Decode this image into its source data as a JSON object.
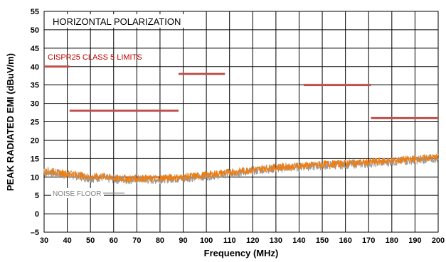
{
  "chart_data": {
    "type": "line",
    "title": "",
    "xlabel": "Frequency (MHz)",
    "ylabel": "PEAK RADIATED EMI (dBuV/m)",
    "xlim": [
      30,
      200
    ],
    "ylim": [
      -5,
      55
    ],
    "x_ticks": [
      30,
      40,
      50,
      60,
      70,
      80,
      90,
      100,
      110,
      120,
      130,
      140,
      150,
      160,
      170,
      180,
      190,
      200
    ],
    "y_ticks": [
      -5,
      0,
      5,
      10,
      15,
      20,
      25,
      30,
      35,
      40,
      45,
      50,
      55
    ],
    "grid": true,
    "annotations": {
      "polarization": "HORIZONTAL POLARIZATION",
      "limits_label": "CISPR25 CLASS 5 LIMITS",
      "noise_floor_label": "NOISE FLOOR"
    },
    "limits": [
      {
        "x": [
          30,
          41
        ],
        "y": 40
      },
      {
        "x": [
          41,
          88
        ],
        "y": 28
      },
      {
        "x": [
          88,
          108
        ],
        "y": 38
      },
      {
        "x": [
          142,
          171
        ],
        "y": 35
      },
      {
        "x": [
          171,
          200
        ],
        "y": 26
      }
    ],
    "series": [
      {
        "name": "",
        "role": "noise-floor",
        "color": "#999999",
        "x": [
          30,
          32,
          34,
          36,
          38,
          40,
          42,
          44,
          46,
          48,
          50,
          52,
          54,
          56,
          58,
          60,
          62,
          64,
          66,
          68,
          70,
          72,
          74,
          76,
          78,
          80,
          82,
          84,
          86,
          88,
          90,
          92,
          94,
          96,
          98,
          100,
          102,
          104,
          106,
          108,
          110,
          112,
          114,
          116,
          118,
          120,
          122,
          124,
          126,
          128,
          130,
          132,
          134,
          136,
          138,
          140,
          142,
          144,
          146,
          148,
          150,
          152,
          154,
          156,
          158,
          160,
          162,
          164,
          166,
          168,
          170,
          172,
          174,
          176,
          178,
          180,
          182,
          184,
          186,
          188,
          190,
          192,
          194,
          196,
          198,
          200
        ],
        "y": [
          11,
          11.4,
          11.1,
          10.9,
          10.7,
          10.5,
          10.6,
          10.3,
          10.1,
          9.8,
          9.6,
          9.7,
          9.9,
          9.8,
          9.5,
          9.4,
          9.3,
          9.4,
          9.2,
          9.3,
          9.3,
          9.4,
          9.3,
          9.2,
          9.3,
          9.4,
          9.5,
          9.5,
          9.6,
          9.5,
          9.6,
          9.8,
          9.9,
          10,
          10.1,
          10.2,
          10.4,
          10.5,
          10.7,
          10.8,
          11,
          11.1,
          11.2,
          11.4,
          11.5,
          11.6,
          11.8,
          12,
          12.1,
          12.2,
          12.3,
          12.4,
          12.5,
          12.5,
          12.6,
          12.7,
          12.9,
          12.8,
          12.9,
          13,
          13.1,
          13.2,
          13.2,
          13.3,
          13.3,
          13.4,
          13.5,
          13.5,
          13.6,
          13.6,
          13.7,
          13.8,
          13.9,
          14,
          14,
          14.1,
          14.2,
          14.3,
          14.4,
          14.5,
          14.6,
          14.7,
          14.8,
          14.9,
          15,
          15
        ]
      },
      {
        "name": "",
        "role": "measured-emi",
        "color": "#F07D10",
        "x": [
          30,
          32,
          34,
          36,
          38,
          40,
          42,
          44,
          46,
          48,
          50,
          52,
          54,
          56,
          58,
          60,
          62,
          64,
          66,
          68,
          70,
          72,
          74,
          76,
          78,
          80,
          82,
          84,
          86,
          88,
          90,
          92,
          94,
          96,
          98,
          100,
          102,
          104,
          106,
          108,
          110,
          112,
          114,
          116,
          118,
          120,
          122,
          124,
          126,
          128,
          130,
          132,
          134,
          136,
          138,
          140,
          142,
          144,
          146,
          148,
          150,
          152,
          154,
          156,
          158,
          160,
          162,
          164,
          166,
          168,
          170,
          172,
          174,
          176,
          178,
          180,
          182,
          184,
          186,
          188,
          190,
          192,
          194,
          196,
          198,
          200
        ],
        "y": [
          11.4,
          11.7,
          11.4,
          11.1,
          11,
          10.8,
          10.9,
          10.6,
          10.4,
          10.1,
          9.9,
          10,
          10.2,
          10.1,
          9.8,
          9.7,
          9.6,
          9.7,
          9.5,
          9.6,
          9.6,
          9.7,
          9.6,
          9.5,
          9.6,
          9.7,
          9.8,
          9.8,
          9.9,
          9.8,
          9.9,
          10.1,
          10.2,
          10.3,
          10.4,
          10.5,
          10.7,
          10.8,
          11,
          11.1,
          11.3,
          11.4,
          11.5,
          11.7,
          11.8,
          11.9,
          12.1,
          12.3,
          12.4,
          12.5,
          12.6,
          12.7,
          12.8,
          12.8,
          12.9,
          13,
          13.2,
          13.1,
          13.2,
          13.3,
          13.4,
          13.5,
          13.5,
          13.6,
          13.6,
          13.7,
          13.8,
          13.8,
          13.9,
          13.9,
          14,
          14.1,
          14.2,
          14.3,
          14.3,
          14.4,
          14.5,
          14.6,
          14.7,
          14.8,
          14.9,
          15,
          15.1,
          15.2,
          15.3,
          15.3
        ]
      }
    ],
    "colors": {
      "limit": "#C0504D",
      "limit_label": "#C00000",
      "noise_label": "#808080",
      "grid": "#000000"
    }
  }
}
